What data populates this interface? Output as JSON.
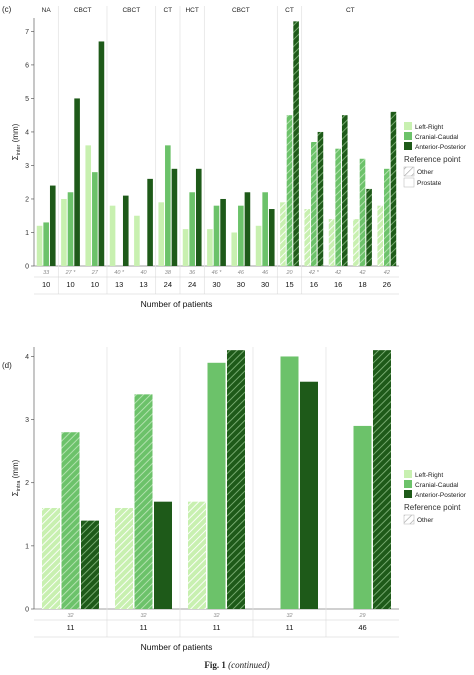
{
  "caption": {
    "prefix": "Fig. 1",
    "suffix": "(continued)"
  },
  "colors": {
    "left_right": "#c8f0b0",
    "cranial_caudal": "#6cc26a",
    "anterior_posterior": "#1e5a19",
    "separator": "#e2e2e2",
    "axis": "#444444",
    "legend_title": "#333333"
  },
  "chart_data": [
    {
      "type": "bar",
      "panel_label": "(c)",
      "ylabel": "Σ",
      "ylabel_sub": "inter",
      "ylabel_unit": "(mm)",
      "xlabel": "Number of patients",
      "ylim": [
        0,
        7.4
      ],
      "yticks": [
        0,
        1,
        2,
        3,
        4,
        5,
        6,
        7
      ],
      "grid": false,
      "legend_position": "right",
      "groups": [
        {
          "label": "NA",
          "count": 1
        },
        {
          "label": "CBCT",
          "count": 2
        },
        {
          "label": "CBCT",
          "count": 2
        },
        {
          "label": "CT",
          "count": 1
        },
        {
          "label": "HCT",
          "count": 1
        },
        {
          "label": "CBCT",
          "count": 3
        },
        {
          "label": "CT",
          "count": 1
        },
        {
          "label": "CT",
          "count": 4
        }
      ],
      "categories": [
        "10",
        "10",
        "10",
        "13",
        "13",
        "24",
        "24",
        "30",
        "30",
        "30",
        "15",
        "16",
        "16",
        "18",
        "26"
      ],
      "category_notes": [
        "33",
        "27 *",
        "27",
        "40 *",
        "40",
        "38",
        "36",
        "46 *",
        "46",
        "46",
        "20",
        "42 *",
        "42",
        "42",
        "42"
      ],
      "hatched": [
        false,
        false,
        false,
        false,
        false,
        false,
        false,
        false,
        false,
        false,
        true,
        true,
        true,
        true,
        true
      ],
      "series": [
        {
          "name": "Left-Right",
          "values": [
            1.2,
            2.0,
            3.6,
            1.8,
            1.5,
            1.9,
            1.1,
            1.1,
            1.0,
            1.2,
            1.9,
            1.7,
            1.4,
            1.4,
            1.8
          ]
        },
        {
          "name": "Cranial-Caudal",
          "values": [
            1.3,
            2.2,
            2.8,
            null,
            null,
            3.6,
            2.2,
            1.8,
            1.8,
            2.2,
            4.5,
            3.7,
            3.5,
            3.2,
            2.9
          ]
        },
        {
          "name": "Anterior-Posterior",
          "values": [
            2.4,
            5.0,
            6.7,
            2.1,
            2.6,
            2.9,
            2.9,
            2.0,
            2.2,
            1.7,
            7.3,
            4.0,
            4.5,
            2.3,
            4.6
          ]
        }
      ],
      "legend": {
        "series_title": "",
        "reference_title": "Reference point",
        "reference_items": [
          "Other",
          "Prostate"
        ]
      }
    },
    {
      "type": "bar",
      "panel_label": "(d)",
      "ylabel": "Σ",
      "ylabel_sub": "intra",
      "ylabel_unit": "(mm)",
      "xlabel": "Number of patients",
      "ylim": [
        0,
        4.15
      ],
      "yticks": [
        0,
        1,
        2,
        3,
        4
      ],
      "grid": false,
      "legend_position": "right",
      "categories": [
        "11",
        "11",
        "11",
        "11",
        "46"
      ],
      "category_notes": [
        "32",
        "32",
        "32",
        "32",
        "29"
      ],
      "series": [
        {
          "name": "Left-Right",
          "values": [
            1.6,
            1.6,
            1.7,
            null,
            null
          ],
          "hatched": [
            true,
            true,
            true,
            false,
            false
          ]
        },
        {
          "name": "Cranial-Caudal",
          "values": [
            2.8,
            3.4,
            3.9,
            4.0,
            2.9
          ],
          "hatched": [
            true,
            true,
            false,
            false,
            false
          ]
        },
        {
          "name": "Anterior-Posterior",
          "values": [
            1.4,
            1.7,
            4.1,
            3.6,
            4.1
          ],
          "hatched": [
            true,
            false,
            true,
            false,
            true
          ]
        }
      ],
      "legend": {
        "series_title": "",
        "reference_title": "Reference point",
        "reference_items": [
          "Other"
        ]
      }
    }
  ]
}
